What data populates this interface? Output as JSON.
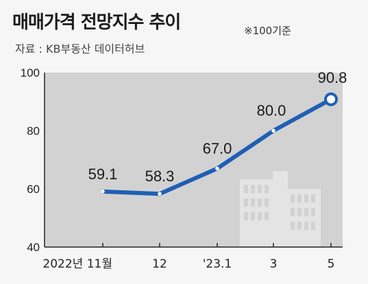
{
  "header": {
    "title": "매매가격 전망지수 추이",
    "note": "※100기준",
    "source": "자료 : KB부동산 데이터허브"
  },
  "colors": {
    "plot_bg": "#d2d2d2",
    "line": "#1f5fb5",
    "building": "#e4e4e4"
  },
  "chart_data": {
    "type": "line",
    "title": "매매가격 전망지수 추이",
    "categories": [
      "2022년 11월",
      "12",
      "'23.1",
      "3",
      "5"
    ],
    "values": [
      59.1,
      58.3,
      67.0,
      80.0,
      90.8
    ],
    "value_labels": [
      "59.1",
      "58.3",
      "67.0",
      "80.0",
      "90.8"
    ],
    "ylim": [
      40,
      100
    ],
    "yticks": [
      "40",
      "60",
      "80",
      "100"
    ],
    "xlabel": "",
    "ylabel": "",
    "grid": false,
    "legend": "none",
    "highlight_last": true
  }
}
